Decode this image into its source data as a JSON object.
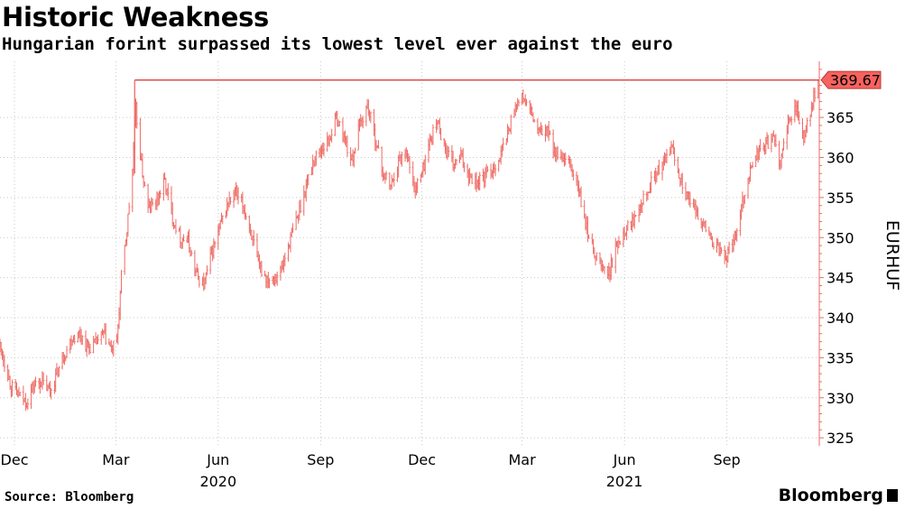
{
  "header": {
    "title": "Historic Weakness",
    "subtitle": "Hungarian forint surpassed its lowest level ever against the euro"
  },
  "footer": {
    "source": "Source: Bloomberg",
    "brand": "Bloomberg"
  },
  "colors": {
    "series": "#ee6a64",
    "reference_line": "#d9433f",
    "label_fill": "#f6625e",
    "axis": "#ee6a64",
    "grid": "#c8c8c8"
  },
  "chart_data": {
    "type": "line",
    "style": "ohlc-bars",
    "title": "Historic Weakness",
    "subtitle": "Hungarian forint surpassed its lowest level ever against the euro",
    "ylabel": "EURHUF",
    "ylim": [
      324,
      372
    ],
    "yticks": [
      325,
      330,
      335,
      340,
      345,
      350,
      355,
      360,
      365
    ],
    "grid": "horizontal-dotted",
    "xlim": [
      "2019-11-18",
      "2021-11-23"
    ],
    "month_ticks": [
      {
        "label": "Dec",
        "date": "2019-12-01"
      },
      {
        "label": "Mar",
        "date": "2020-03-01"
      },
      {
        "label": "Jun",
        "date": "2020-06-01"
      },
      {
        "label": "Sep",
        "date": "2020-09-01"
      },
      {
        "label": "Dec",
        "date": "2020-12-01"
      },
      {
        "label": "Mar",
        "date": "2021-03-01"
      },
      {
        "label": "Jun",
        "date": "2021-06-01"
      },
      {
        "label": "Sep",
        "date": "2021-09-01"
      }
    ],
    "year_labels": [
      {
        "label": "2020",
        "date": "2020-06-01"
      },
      {
        "label": "2021",
        "date": "2021-06-01"
      }
    ],
    "reference_line": {
      "value": 369.67,
      "from": "2020-03-18",
      "to": "2021-11-23"
    },
    "last_value_label": "369.67",
    "series": [
      {
        "x": [
          "2019-11-18",
          "2019-11-22",
          "2019-11-28",
          "2019-12-05",
          "2019-12-12",
          "2019-12-18",
          "2019-12-25",
          "2020-01-02",
          "2020-01-08",
          "2020-01-15",
          "2020-01-22",
          "2020-01-29",
          "2020-02-05",
          "2020-02-12",
          "2020-02-19",
          "2020-02-26",
          "2020-03-02",
          "2020-03-06",
          "2020-03-11",
          "2020-03-16",
          "2020-03-19",
          "2020-03-24",
          "2020-03-30",
          "2020-04-06",
          "2020-04-14",
          "2020-04-21",
          "2020-04-28",
          "2020-05-05",
          "2020-05-12",
          "2020-05-19",
          "2020-05-26",
          "2020-06-02",
          "2020-06-09",
          "2020-06-16",
          "2020-06-23",
          "2020-06-30",
          "2020-07-07",
          "2020-07-14",
          "2020-07-21",
          "2020-07-28",
          "2020-08-04",
          "2020-08-11",
          "2020-08-18",
          "2020-08-25",
          "2020-09-01",
          "2020-09-08",
          "2020-09-15",
          "2020-09-22",
          "2020-09-29",
          "2020-10-06",
          "2020-10-13",
          "2020-10-20",
          "2020-10-27",
          "2020-11-03",
          "2020-11-10",
          "2020-11-17",
          "2020-11-24",
          "2020-12-01",
          "2020-12-08",
          "2020-12-15",
          "2020-12-22",
          "2020-12-29",
          "2021-01-05",
          "2021-01-12",
          "2021-01-19",
          "2021-01-26",
          "2021-02-02",
          "2021-02-09",
          "2021-02-16",
          "2021-02-23",
          "2021-03-02",
          "2021-03-09",
          "2021-03-16",
          "2021-03-23",
          "2021-03-30",
          "2021-04-06",
          "2021-04-13",
          "2021-04-20",
          "2021-04-27",
          "2021-05-04",
          "2021-05-11",
          "2021-05-18",
          "2021-05-25",
          "2021-06-01",
          "2021-06-08",
          "2021-06-15",
          "2021-06-22",
          "2021-06-29",
          "2021-07-06",
          "2021-07-13",
          "2021-07-20",
          "2021-07-27",
          "2021-08-03",
          "2021-08-10",
          "2021-08-17",
          "2021-08-24",
          "2021-08-31",
          "2021-09-07",
          "2021-09-14",
          "2021-09-21",
          "2021-09-28",
          "2021-10-05",
          "2021-10-12",
          "2021-10-19",
          "2021-10-26",
          "2021-11-02",
          "2021-11-09",
          "2021-11-16",
          "2021-11-23"
        ],
        "y": [
          336.5,
          334.5,
          331.5,
          330.2,
          329.5,
          331.5,
          332.0,
          330.8,
          333.0,
          335.5,
          337.5,
          338.0,
          336.2,
          336.8,
          338.0,
          336.0,
          337.0,
          345.0,
          351.0,
          358.5,
          366.0,
          359.0,
          353.5,
          354.5,
          357.0,
          352.5,
          350.0,
          349.5,
          345.5,
          344.0,
          348.0,
          351.0,
          354.0,
          355.5,
          354.0,
          351.0,
          346.5,
          345.0,
          345.0,
          346.0,
          349.5,
          352.5,
          356.0,
          359.5,
          361.0,
          362.0,
          365.0,
          362.5,
          359.5,
          364.0,
          366.5,
          362.5,
          358.0,
          356.5,
          359.5,
          361.0,
          356.0,
          358.0,
          362.0,
          364.5,
          361.0,
          359.0,
          360.0,
          358.0,
          357.0,
          357.5,
          358.5,
          360.0,
          363.0,
          366.5,
          367.5,
          365.5,
          363.0,
          363.5,
          361.0,
          359.5,
          359.0,
          356.5,
          351.5,
          348.5,
          346.5,
          345.5,
          349.0,
          351.0,
          352.0,
          354.5,
          356.0,
          358.0,
          359.0,
          361.5,
          358.0,
          355.0,
          353.5,
          352.0,
          350.0,
          348.5,
          347.5,
          349.5,
          354.0,
          358.0,
          360.5,
          361.5,
          362.5,
          359.5,
          364.0,
          366.5,
          362.0,
          366.5,
          369.67
        ]
      }
    ]
  }
}
